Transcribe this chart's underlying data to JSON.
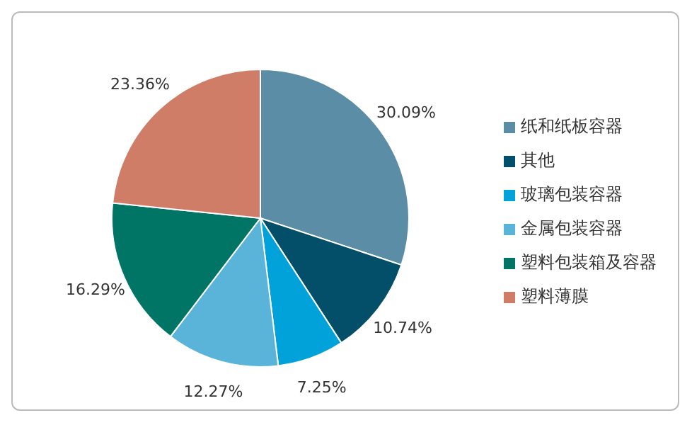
{
  "chart_data": {
    "type": "pie",
    "categories": [
      "纸和纸板容器",
      "其他",
      "玻璃包装容器",
      "金属包装容器",
      "塑料包装箱及容器",
      "塑料薄膜"
    ],
    "values": [
      30.09,
      10.74,
      7.25,
      12.27,
      16.29,
      23.36
    ],
    "value_labels": [
      "30.09%",
      "10.74%",
      "7.25%",
      "12.27%",
      "16.29%",
      "23.36%"
    ],
    "colors": [
      "#5b8ea6",
      "#034f6a",
      "#00a2d9",
      "#5ab4da",
      "#007566",
      "#d07d68"
    ],
    "legend": "right"
  }
}
